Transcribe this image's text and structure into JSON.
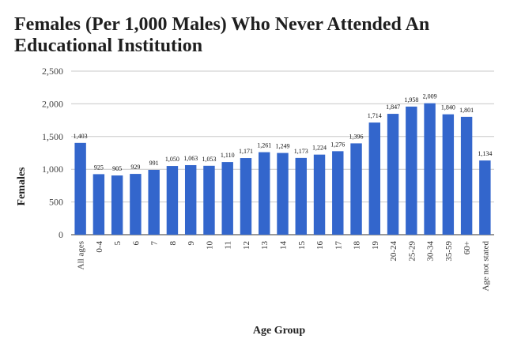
{
  "chart_data": {
    "type": "bar",
    "title": "Females (Per 1,000 Males) Who Never Attended An Educational Institution",
    "xlabel": "Age Group",
    "ylabel": "Females",
    "ylim": [
      0,
      2500
    ],
    "yticks": [
      "0",
      "500",
      "1,000",
      "1,500",
      "2,000",
      "2,500"
    ],
    "grid": true,
    "legend": "none",
    "bar_color": "#3366cc",
    "categories": [
      "All ages",
      "0-4",
      "5",
      "6",
      "7",
      "8",
      "9",
      "10",
      "11",
      "12",
      "13",
      "14",
      "15",
      "16",
      "17",
      "18",
      "19",
      "20-24",
      "25-29",
      "30-34",
      "35-59",
      "60+",
      "Age not stated"
    ],
    "values": [
      1403,
      925,
      905,
      929,
      991,
      1050,
      1063,
      1053,
      1110,
      1171,
      1261,
      1249,
      1173,
      1224,
      1276,
      1396,
      1714,
      1847,
      1958,
      2009,
      1840,
      1801,
      1134
    ],
    "data_labels": [
      "1,403",
      "925",
      "905",
      "929",
      "991",
      "1,050",
      "1,063",
      "1,053",
      "1,110",
      "1,171",
      "1,261",
      "1,249",
      "1,173",
      "1,224",
      "1,276",
      "1,396",
      "1,714",
      "1,847",
      "1,958",
      "2,009",
      "1,840",
      "1,801",
      "1,134"
    ]
  }
}
